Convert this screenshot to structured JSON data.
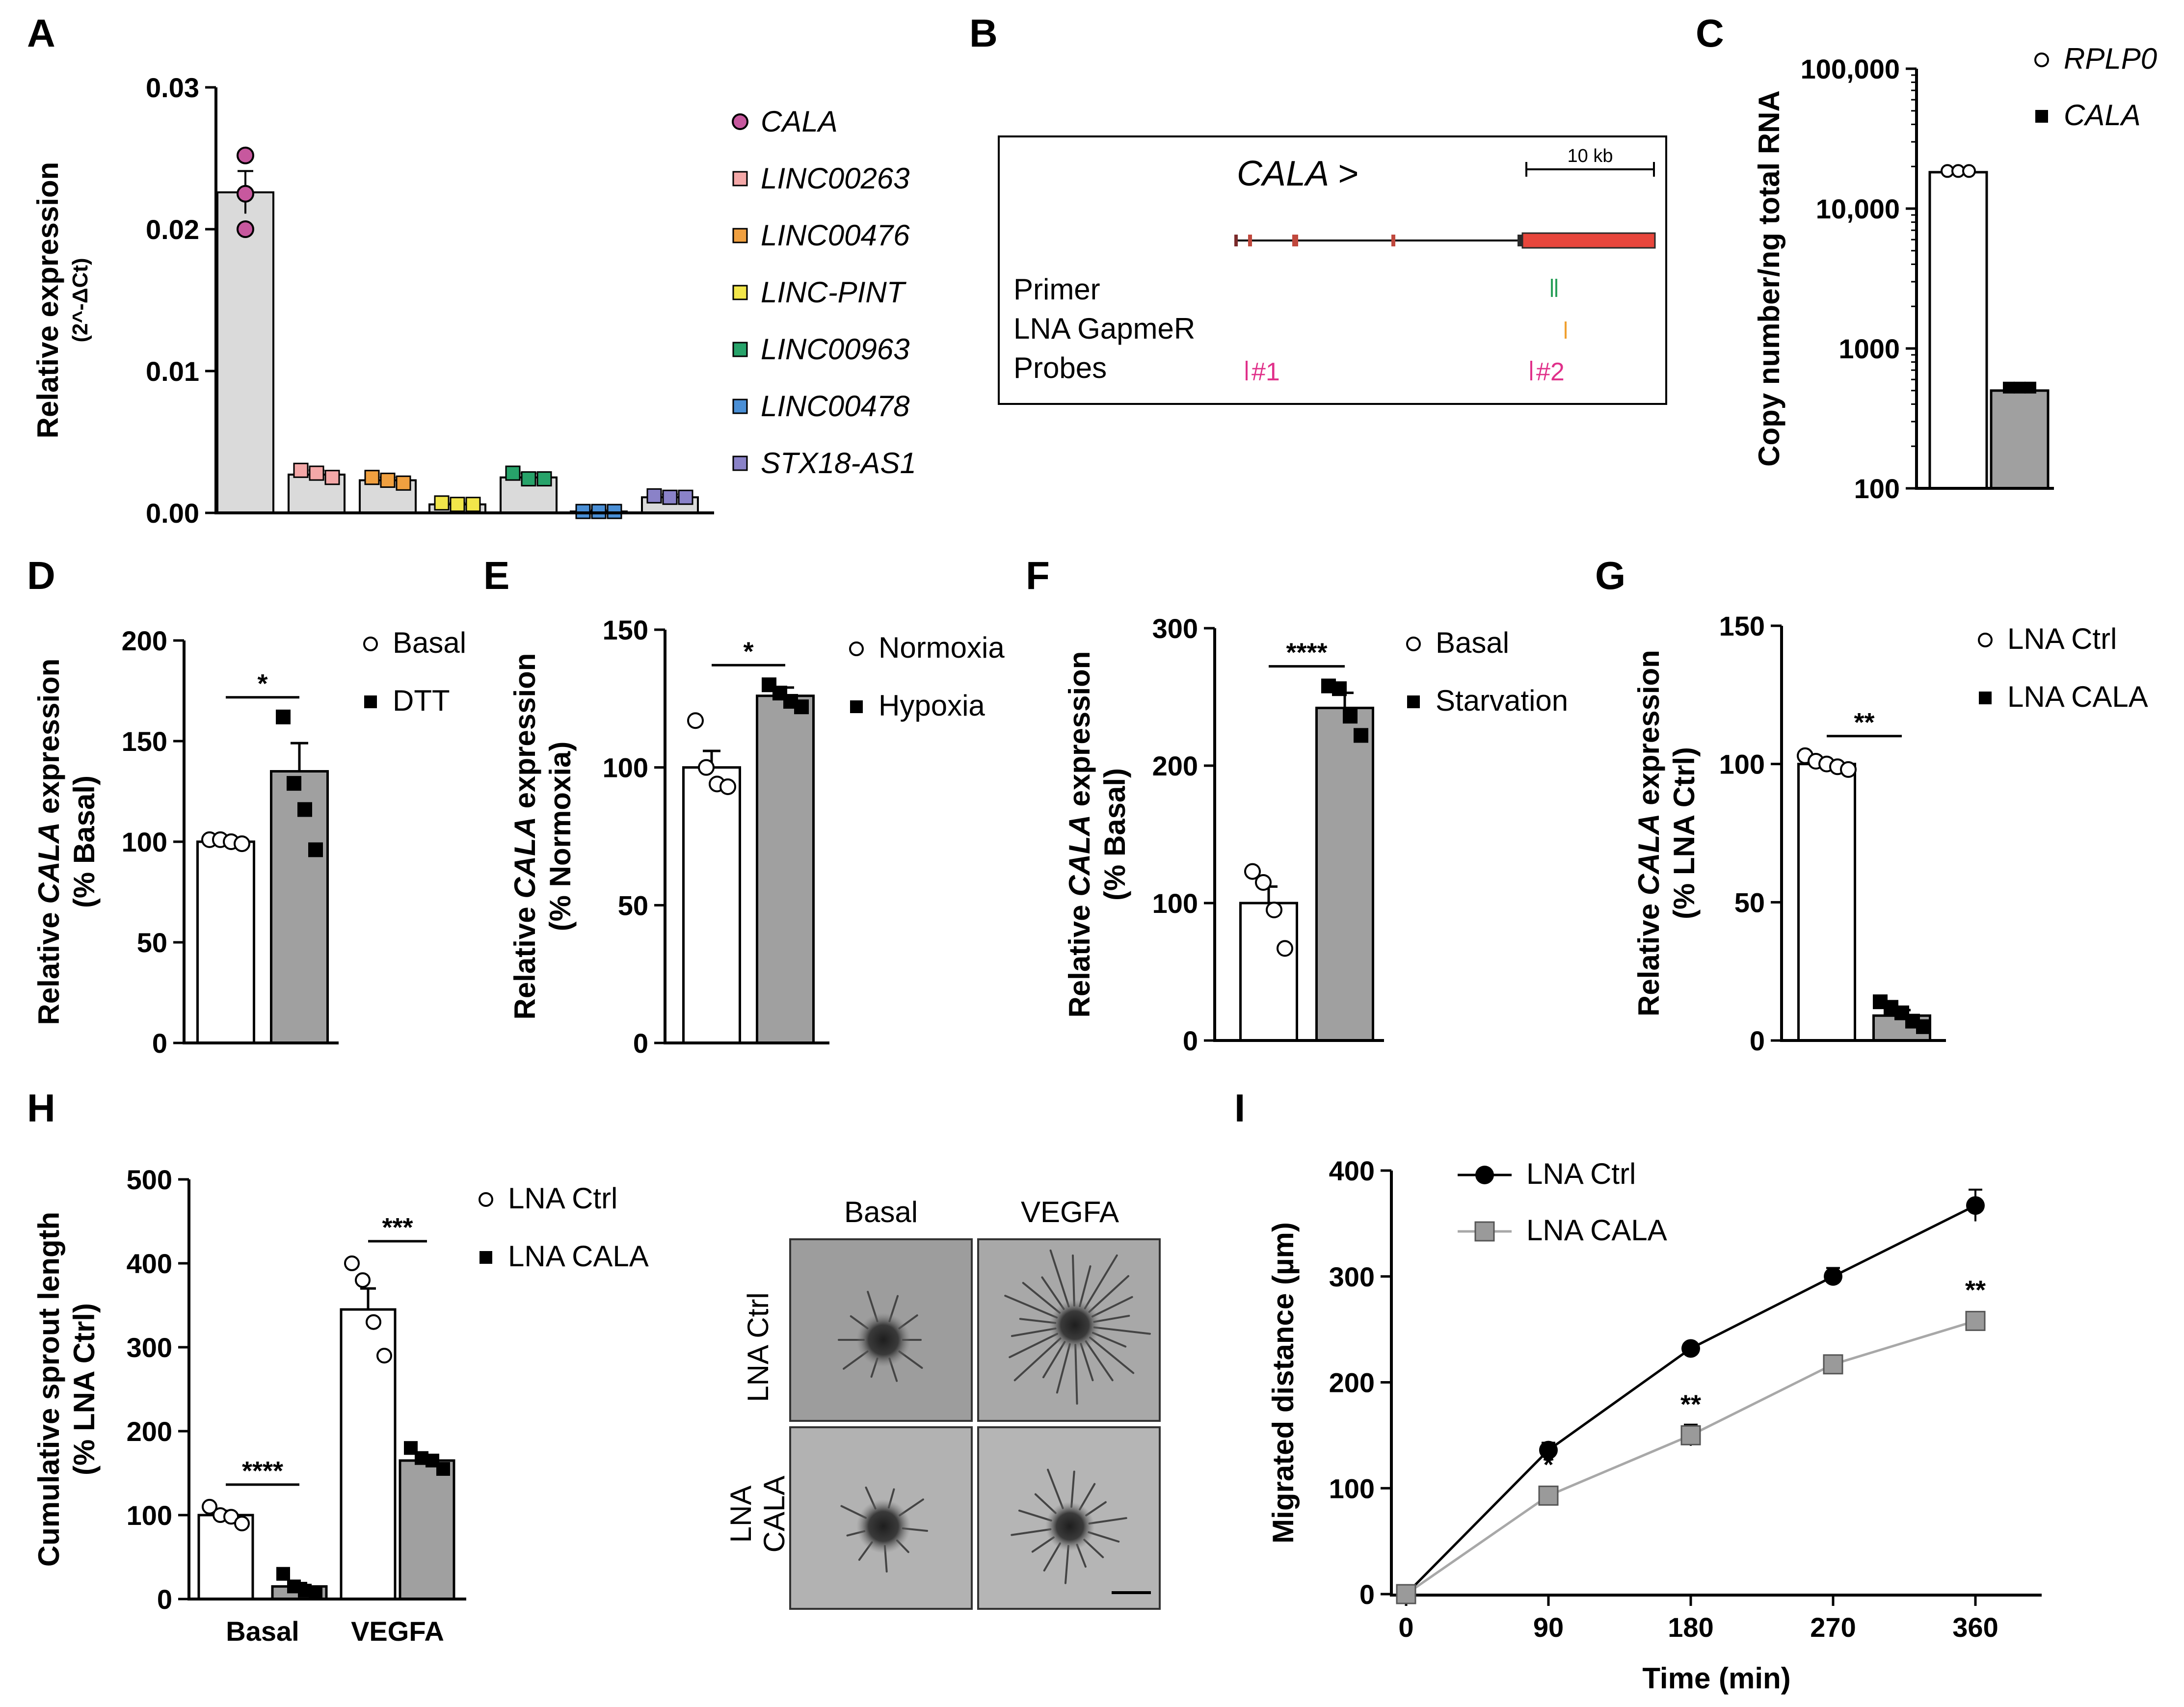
{
  "figure": {
    "panel_labels": [
      "A",
      "B",
      "C",
      "D",
      "E",
      "F",
      "G",
      "H",
      "I"
    ]
  },
  "chart_data": [
    {
      "id": "A",
      "type": "bar",
      "ylabel": "Relative expression",
      "ylabel2": "(2^-ΔCt)",
      "ylim": [
        0,
        0.03
      ],
      "yticks": [
        "0.00",
        "0.01",
        "0.02",
        "0.03"
      ],
      "categories": [
        "CALA",
        "LINC00263",
        "LINC00476",
        "LINC-PINT",
        "LINC00963",
        "LINC00478",
        "STX18-AS1"
      ],
      "values": [
        0.0226,
        0.0027,
        0.0023,
        0.0006,
        0.0025,
        0.0001,
        0.0011
      ],
      "errors": [
        0.0015,
        0.0003,
        0.0002,
        0.0001,
        0.0003,
        0.0001,
        0.0002
      ],
      "points": [
        [
          0.0252,
          0.0225,
          0.02
        ],
        [
          0.003,
          0.0028,
          0.0025
        ],
        [
          0.0025,
          0.0023,
          0.0021
        ],
        [
          0.0007,
          0.0006,
          0.0006
        ],
        [
          0.0028,
          0.0024,
          0.0024
        ],
        [
          0.0001,
          0.0001,
          0.0001
        ],
        [
          0.0012,
          0.0011,
          0.0011
        ]
      ],
      "colors": [
        "#c7589e",
        "#f4a8a8",
        "#f0a040",
        "#f2e64a",
        "#27a36a",
        "#4a8fd6",
        "#8a82c8"
      ],
      "legend": [
        "CALA",
        "LINC00263",
        "LINC00476",
        "LINC-PINT",
        "LINC00963",
        "LINC00478",
        "STX18-AS1"
      ]
    },
    {
      "id": "C",
      "type": "bar",
      "scale": "log",
      "ylabel": "Copy number/ng total RNA",
      "ylim": [
        100,
        100000
      ],
      "yticks": [
        "100",
        "1000",
        "10,000",
        "100,000"
      ],
      "categories": [
        "RPLP0",
        "CALA"
      ],
      "values": [
        18200,
        500
      ],
      "legend": [
        "RPLP0",
        "CALA"
      ]
    },
    {
      "id": "D",
      "type": "bar",
      "ylabel_pre": "Relative ",
      "ylabel_gene": "CALA",
      "ylabel_post": " expression",
      "ylabel2": "(% Basal)",
      "ylim": [
        0,
        200
      ],
      "yticks": [
        "0",
        "50",
        "100",
        "150",
        "200"
      ],
      "categories": [
        "Basal",
        "DTT"
      ],
      "values": [
        100,
        135
      ],
      "errors": [
        1,
        14
      ],
      "points": [
        [
          101,
          101,
          100,
          99
        ],
        [
          162,
          129,
          116,
          96
        ]
      ],
      "significance": "*",
      "legend": [
        "Basal",
        "DTT"
      ]
    },
    {
      "id": "E",
      "type": "bar",
      "ylabel_pre": "Relative ",
      "ylabel_gene": "CALA",
      "ylabel_post": " expression",
      "ylabel2": "(% Normoxia)",
      "ylim": [
        0,
        150
      ],
      "yticks": [
        "0",
        "50",
        "100",
        "150"
      ],
      "categories": [
        "Normoxia",
        "Hypoxia"
      ],
      "values": [
        100,
        126
      ],
      "errors": [
        6,
        3
      ],
      "points": [
        [
          117,
          100,
          94,
          93
        ],
        [
          130,
          127,
          124,
          122
        ]
      ],
      "significance": "*",
      "legend": [
        "Normoxia",
        "Hypoxia"
      ]
    },
    {
      "id": "F",
      "type": "bar",
      "ylabel_pre": "Relative ",
      "ylabel_gene": "CALA",
      "ylabel_post": " expression",
      "ylabel2": "(% Basal)",
      "ylim": [
        0,
        300
      ],
      "yticks": [
        "0",
        "100",
        "200",
        "300"
      ],
      "categories": [
        "Basal",
        "Starvation"
      ],
      "values": [
        100,
        242
      ],
      "errors": [
        12,
        11
      ],
      "points": [
        [
          123,
          115,
          95,
          67
        ],
        [
          258,
          256,
          236,
          222
        ]
      ],
      "significance": "****",
      "legend": [
        "Basal",
        "Starvation"
      ]
    },
    {
      "id": "G",
      "type": "bar",
      "ylabel_pre": "Relative ",
      "ylabel_gene": "CALA",
      "ylabel_post": " expression",
      "ylabel2": "(% LNA Ctrl)",
      "ylim": [
        0,
        150
      ],
      "yticks": [
        "0",
        "50",
        "100",
        "150"
      ],
      "categories": [
        "LNA Ctrl",
        "LNA CALA"
      ],
      "values": [
        100,
        9
      ],
      "errors": [
        1,
        2
      ],
      "points": [
        [
          103,
          101,
          100,
          99,
          98
        ],
        [
          14,
          12,
          10,
          7,
          5
        ]
      ],
      "significance": "**",
      "legend": [
        "LNA Ctrl",
        "LNA CALA"
      ]
    },
    {
      "id": "H",
      "type": "bar",
      "ylabel": "Cumulative sprout length",
      "ylabel2": "(% LNA Ctrl)",
      "ylim": [
        0,
        500
      ],
      "yticks": [
        "0",
        "100",
        "200",
        "300",
        "400",
        "500"
      ],
      "categories": [
        "Basal",
        "VEGFA"
      ],
      "series": [
        {
          "name": "LNA Ctrl",
          "values": [
            100,
            345
          ],
          "errors": [
            5,
            25
          ],
          "points": [
            [
              110,
              100,
              98,
              90
            ],
            [
              400,
              380,
              330,
              290
            ]
          ]
        },
        {
          "name": "LNA CALA",
          "values": [
            15,
            165
          ],
          "errors": [
            4,
            5
          ],
          "points": [
            [
              30,
              15,
              10,
              8
            ],
            [
              180,
              168,
              165,
              155
            ]
          ]
        }
      ],
      "significance": [
        "****",
        "***"
      ],
      "legend": [
        "LNA Ctrl",
        "LNA CALA"
      ]
    },
    {
      "id": "I",
      "type": "line",
      "xlabel": "Time (min)",
      "ylabel": "Migrated distance (µm)",
      "x": [
        0,
        90,
        180,
        270,
        360
      ],
      "xticks": [
        "0",
        "90",
        "180",
        "270",
        "360"
      ],
      "ylim": [
        0,
        400
      ],
      "yticks": [
        "0",
        "100",
        "200",
        "300",
        "400"
      ],
      "series": [
        {
          "name": "LNA Ctrl",
          "values": [
            0,
            136,
            232,
            300,
            367
          ],
          "errors": [
            0,
            7,
            5,
            8,
            15
          ]
        },
        {
          "name": "LNA CALA",
          "values": [
            0,
            93,
            150,
            217,
            258
          ],
          "errors": [
            0,
            5,
            10,
            6,
            8
          ]
        }
      ],
      "significance": [
        "*",
        "**",
        "**"
      ],
      "legend": [
        "LNA Ctrl",
        "LNA CALA"
      ]
    }
  ],
  "panelB": {
    "gene_label": "CALA >",
    "scale_label": "10 kb",
    "rows": [
      "Primer",
      "LNA GapmeR",
      "Probes"
    ],
    "probe_labels": [
      "#1",
      "#2"
    ]
  },
  "panelH_images": {
    "col_headers": [
      "Basal",
      "VEGFA"
    ],
    "row_labels": [
      "LNA Ctrl",
      "LNA CALA"
    ]
  }
}
